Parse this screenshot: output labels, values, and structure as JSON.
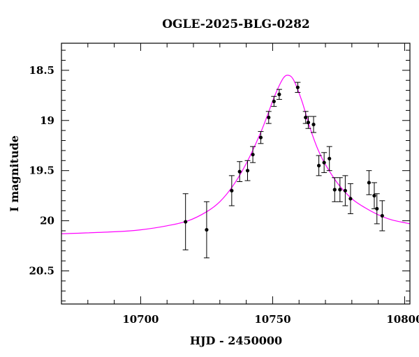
{
  "chart_data": {
    "type": "scatter",
    "title": "OGLE-2025-BLG-0282",
    "xlabel": "HJD - 2450000",
    "ylabel": "I magnitude",
    "xlim": [
      10670,
      10802
    ],
    "ylim": [
      20.83,
      18.23
    ],
    "y_inverted": true,
    "x_ticks": [
      10700,
      10750,
      10800
    ],
    "y_ticks": [
      18.5,
      19,
      19.5,
      20,
      20.5
    ],
    "x_tick_labels": [
      "10700",
      "10750",
      "10800"
    ],
    "y_tick_labels": [
      "18.5",
      "19",
      "19.5",
      "20",
      "20.5"
    ],
    "grid": false,
    "colors": {
      "model": "#ff00ff",
      "points": "#000000"
    },
    "series": [
      {
        "kind": "points_with_errorbars",
        "x": [
          10717.0,
          10725.0,
          10734.5,
          10737.5,
          10740.5,
          10742.5,
          10745.5,
          10748.5,
          10750.5,
          10752.5,
          10759.5,
          10762.5,
          10763.5,
          10765.5,
          10767.5,
          10769.5,
          10771.5,
          10773.5,
          10775.5,
          10777.5,
          10779.5,
          10786.5,
          10788.5,
          10789.5,
          10791.5
        ],
        "y": [
          20.01,
          20.09,
          19.7,
          19.51,
          19.5,
          19.34,
          19.17,
          18.97,
          18.81,
          18.74,
          18.67,
          18.97,
          19.02,
          19.04,
          19.45,
          19.42,
          19.38,
          19.69,
          19.69,
          19.7,
          19.78,
          19.62,
          19.75,
          19.88,
          19.95
        ],
        "err": [
          0.28,
          0.28,
          0.15,
          0.1,
          0.1,
          0.08,
          0.06,
          0.06,
          0.05,
          0.05,
          0.05,
          0.06,
          0.06,
          0.08,
          0.1,
          0.1,
          0.12,
          0.12,
          0.12,
          0.15,
          0.15,
          0.12,
          0.13,
          0.15,
          0.15
        ]
      },
      {
        "kind": "model_curve",
        "x": [
          10670,
          10690,
          10700,
          10710,
          10718,
          10725,
          10730,
          10735,
          10740,
          10745,
          10748,
          10751,
          10754,
          10756,
          10758,
          10761,
          10764,
          10767,
          10770,
          10775,
          10780,
          10785,
          10790,
          10795,
          10802
        ],
        "y": [
          20.13,
          20.11,
          20.09,
          20.05,
          20.0,
          19.91,
          19.81,
          19.65,
          19.43,
          19.15,
          18.95,
          18.74,
          18.58,
          18.55,
          18.6,
          18.8,
          19.06,
          19.28,
          19.44,
          19.64,
          19.78,
          19.87,
          19.94,
          19.99,
          20.03
        ]
      }
    ]
  }
}
